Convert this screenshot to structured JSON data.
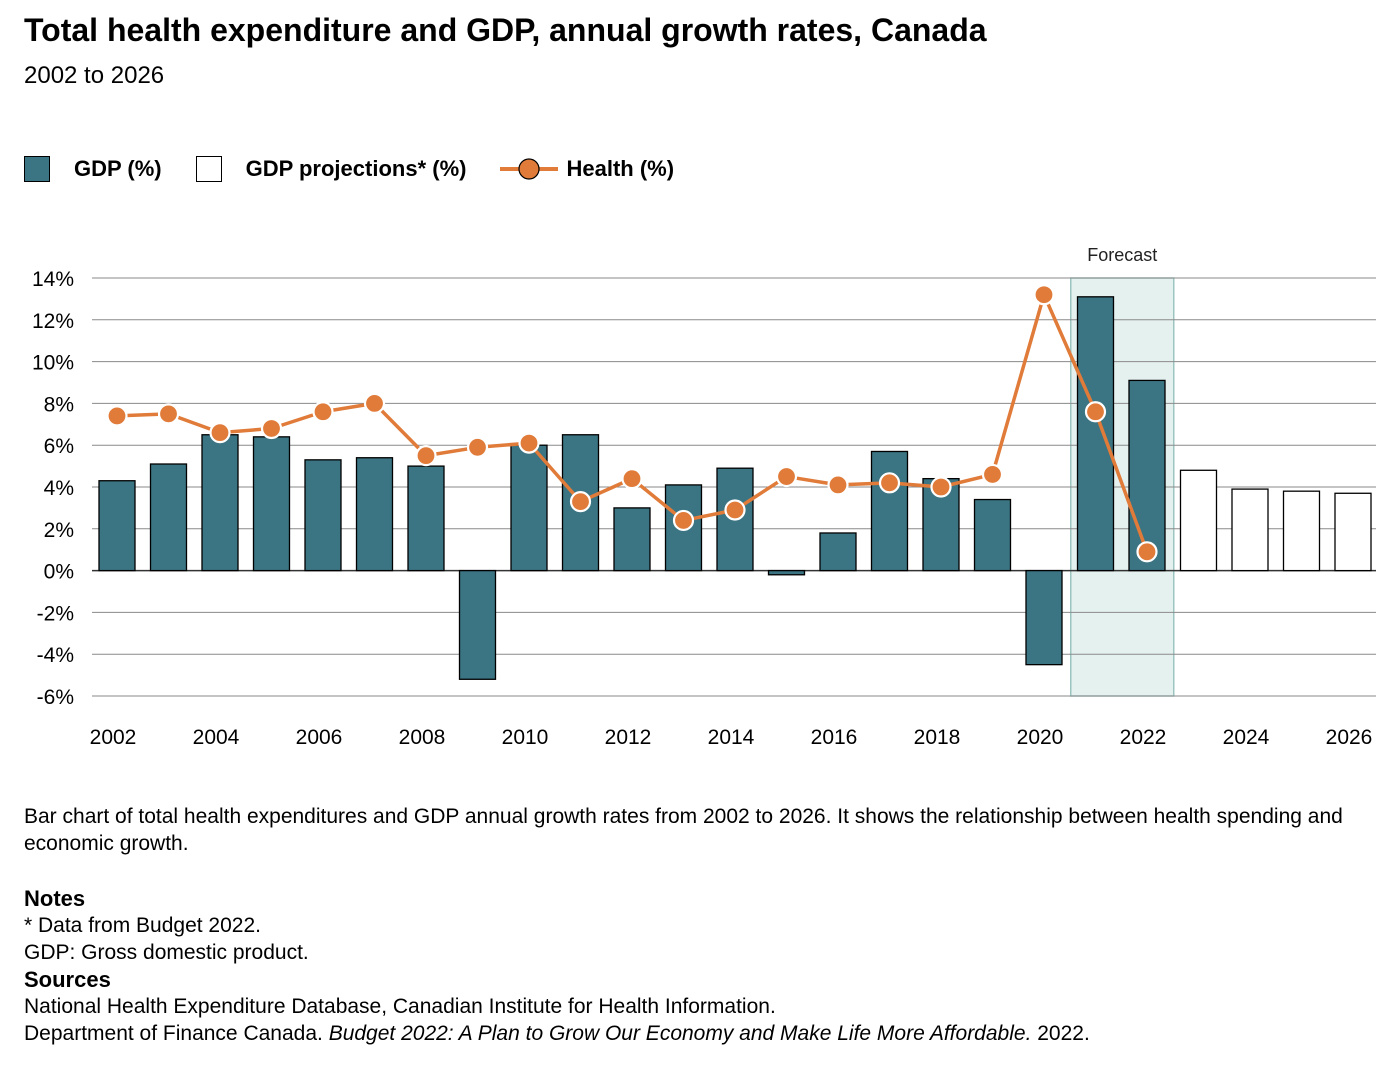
{
  "title": "Total health expenditure and GDP, annual growth rates, Canada",
  "subtitle": "2002 to 2026",
  "legend": {
    "gdp": "GDP (%)",
    "projections": "GDP projections* (%)",
    "health": "Health (%)"
  },
  "description": "Bar chart of total health expenditures and GDP annual growth rates from 2002 to 2026. It shows the relationship between health spending and economic growth.",
  "notes": {
    "heading": "Notes",
    "line1": "* Data from Budget 2022.",
    "line2": "GDP: Gross domestic product."
  },
  "sources": {
    "heading": "Sources",
    "line1": "National Health Expenditure Database, Canadian Institute for Health Information.",
    "line2_prefix": "Department of Finance Canada. ",
    "line2_italic": "Budget 2022: A Plan to Grow Our Economy and Make Life More Affordable.",
    "line2_suffix": " 2022."
  },
  "colors": {
    "gdp": "#3b7482",
    "health": "#e07b39",
    "forecast_band": "#e5f1ef",
    "forecast_border": "#9cc4c1",
    "grid": "#8a8a8a"
  },
  "chart_data": {
    "type": "bar",
    "x": [
      2002,
      2003,
      2004,
      2005,
      2006,
      2007,
      2008,
      2009,
      2010,
      2011,
      2012,
      2013,
      2014,
      2015,
      2016,
      2017,
      2018,
      2019,
      2020,
      2021,
      2022,
      2023,
      2024,
      2025,
      2026
    ],
    "x_tick_labels": [
      "2002",
      "2004",
      "2006",
      "2008",
      "2010",
      "2012",
      "2014",
      "2016",
      "2018",
      "2020",
      "2022",
      "2024",
      "2026"
    ],
    "y_tick_labels": [
      "14%",
      "12%",
      "10%",
      "8%",
      "6%",
      "4%",
      "2%",
      "0%",
      "-2%",
      "-4%",
      "-6%"
    ],
    "ylim": [
      -6,
      14
    ],
    "forecast_label": "Forecast",
    "forecast_years": [
      2021,
      2022
    ],
    "series": [
      {
        "name": "GDP (%)",
        "kind": "bar",
        "values": [
          4.3,
          5.1,
          6.5,
          6.4,
          5.3,
          5.4,
          5.0,
          -5.2,
          6.0,
          6.5,
          3.0,
          4.1,
          4.9,
          -0.2,
          1.8,
          5.7,
          4.4,
          3.4,
          -4.5,
          13.1,
          9.1,
          null,
          null,
          null,
          null
        ]
      },
      {
        "name": "GDP projections* (%)",
        "kind": "bar",
        "values": [
          null,
          null,
          null,
          null,
          null,
          null,
          null,
          null,
          null,
          null,
          null,
          null,
          null,
          null,
          null,
          null,
          null,
          null,
          null,
          null,
          null,
          4.8,
          3.9,
          3.8,
          3.7
        ]
      },
      {
        "name": "Health (%)",
        "kind": "line",
        "values": [
          7.4,
          7.5,
          6.6,
          6.8,
          7.6,
          8.0,
          5.5,
          5.9,
          6.1,
          3.3,
          4.4,
          2.4,
          2.9,
          4.5,
          4.1,
          4.2,
          4.0,
          4.6,
          13.2,
          7.6,
          0.9,
          null,
          null,
          null,
          null
        ]
      }
    ],
    "grid": true,
    "legend_position": "top-left"
  }
}
